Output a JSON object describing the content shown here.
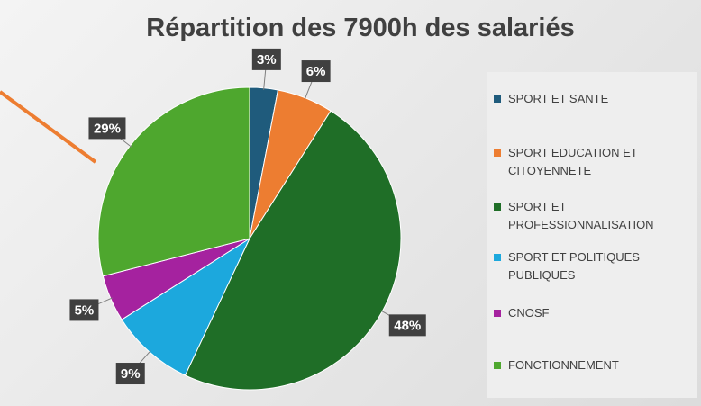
{
  "chart_data": {
    "type": "pie",
    "title": "Répartition des 7900h des salariés",
    "categories": [
      "SPORT ET SANTE",
      "SPORT EDUCATION ET CITOYENNETE",
      "SPORT ET PROFESSIONNALISATION",
      "SPORT ET POLITIQUES PUBLIQUES",
      "CNOSF",
      "FONCTIONNEMENT"
    ],
    "values": [
      3,
      6,
      48,
      9,
      5,
      29
    ],
    "value_labels": [
      "3%",
      "6%",
      "48%",
      "9%",
      "5%",
      "29%"
    ],
    "colors": [
      "#1f5b7c",
      "#ed7d31",
      "#1f6e27",
      "#1ca8dd",
      "#a5229f",
      "#4ea72e"
    ],
    "legend": "right"
  }
}
